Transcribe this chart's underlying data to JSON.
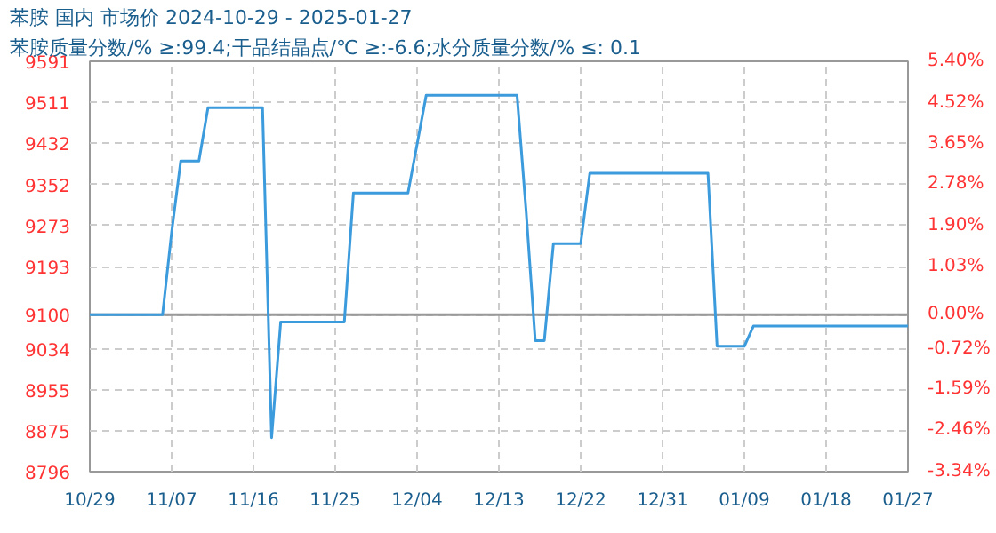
{
  "chart_data": {
    "type": "line",
    "title": "苯胺 国内 市场价 2024-10-29 - 2025-01-27",
    "subtitle": "苯胺质量分数/% ≥:99.4;干品结晶点/℃  ≥:-6.6;水分质量分数/%  ≤: 0.1",
    "x": [
      "2024-10-29",
      "2024-11-06",
      "2024-11-07",
      "2024-11-08",
      "2024-11-10",
      "2024-11-11",
      "2024-11-17",
      "2024-11-18",
      "2024-11-19",
      "2024-11-26",
      "2024-11-27",
      "2024-12-03",
      "2024-12-04",
      "2024-12-05",
      "2024-12-15",
      "2024-12-16",
      "2024-12-17",
      "2024-12-18",
      "2024-12-19",
      "2024-12-22",
      "2024-12-23",
      "2025-01-05",
      "2025-01-06",
      "2025-01-09",
      "2025-01-10",
      "2025-01-27"
    ],
    "series": [
      {
        "color": "#3c9bdc",
        "values": [
          9100,
          9100,
          9260,
          9398,
          9398,
          9501,
          9501,
          8862,
          9086,
          9086,
          9336,
          9336,
          9430,
          9525,
          9525,
          9300,
          9050,
          9050,
          9238,
          9238,
          9374,
          9374,
          9039,
          9039,
          9078,
          9078
        ]
      }
    ],
    "xlim": [
      "2024-10-29",
      "2025-01-27"
    ],
    "xticks": [
      {
        "value": "2024-10-29",
        "label": "10/29"
      },
      {
        "value": "2024-11-07",
        "label": "11/07"
      },
      {
        "value": "2024-11-16",
        "label": "11/16"
      },
      {
        "value": "2024-11-25",
        "label": "11/25"
      },
      {
        "value": "2024-12-04",
        "label": "12/04"
      },
      {
        "value": "2024-12-13",
        "label": "12/13"
      },
      {
        "value": "2024-12-22",
        "label": "12/22"
      },
      {
        "value": "2024-12-31",
        "label": "12/31"
      },
      {
        "value": "2025-01-09",
        "label": "01/09"
      },
      {
        "value": "2025-01-18",
        "label": "01/18"
      },
      {
        "value": "2025-01-27",
        "label": "01/27"
      }
    ],
    "ylim": [
      8796,
      9591
    ],
    "yticks": [
      8796,
      8875,
      8955,
      9034,
      9100,
      9193,
      9273,
      9352,
      9432,
      9511,
      9591
    ],
    "y2lim": [
      -3.34,
      5.4
    ],
    "y2ticks": [
      {
        "value": -3.34,
        "label": "-3.34%"
      },
      {
        "value": -2.46,
        "label": "-2.46%"
      },
      {
        "value": -1.59,
        "label": "-1.59%"
      },
      {
        "value": -0.72,
        "label": "-0.72%"
      },
      {
        "value": 0,
        "label": "0.00%"
      },
      {
        "value": 1.03,
        "label": "1.03%"
      },
      {
        "value": 1.9,
        "label": "1.90%"
      },
      {
        "value": 2.78,
        "label": "2.78%"
      },
      {
        "value": 3.65,
        "label": "3.65%"
      },
      {
        "value": 4.52,
        "label": "4.52%"
      },
      {
        "value": 5.4,
        "label": "5.40%"
      }
    ],
    "ref_lines": [
      {
        "axis": "y",
        "value": 9100,
        "color": "#999999"
      }
    ],
    "grid": true,
    "marker": "none",
    "line_style": "solid"
  }
}
